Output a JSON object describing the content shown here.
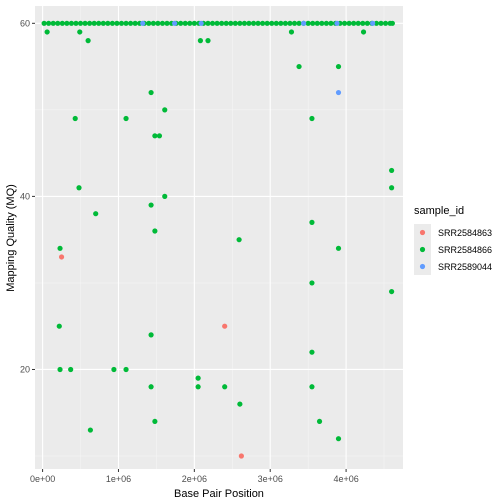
{
  "chart_data": {
    "type": "scatter",
    "xlabel": "Base Pair Position",
    "ylabel": "Mapping Quality (MQ)",
    "xlim": [
      -100000,
      4750000
    ],
    "ylim": [
      8.5,
      62
    ],
    "x_ticks": [
      0,
      1000000,
      2000000,
      3000000,
      4000000
    ],
    "x_tick_labels": [
      "0e+00",
      "1e+06",
      "2e+06",
      "3e+06",
      "4e+06"
    ],
    "y_ticks": [
      20,
      40,
      60
    ],
    "y_tick_labels": [
      "20",
      "40",
      "60"
    ],
    "grid": true,
    "legend": {
      "title": "sample_id",
      "position": "right"
    },
    "series": [
      {
        "name": "SRR2584863",
        "color": "#F8766D",
        "points": [
          [
            250000,
            33
          ],
          [
            2400000,
            25
          ],
          [
            2620000,
            10
          ]
        ]
      },
      {
        "name": "SRR2584866",
        "color": "#00BA38",
        "points": [
          [
            20000,
            60
          ],
          [
            80000,
            60
          ],
          [
            140000,
            60
          ],
          [
            200000,
            60
          ],
          [
            260000,
            60
          ],
          [
            320000,
            60
          ],
          [
            380000,
            60
          ],
          [
            440000,
            60
          ],
          [
            500000,
            60
          ],
          [
            560000,
            60
          ],
          [
            620000,
            60
          ],
          [
            680000,
            60
          ],
          [
            740000,
            60
          ],
          [
            800000,
            60
          ],
          [
            860000,
            60
          ],
          [
            920000,
            60
          ],
          [
            980000,
            60
          ],
          [
            1040000,
            60
          ],
          [
            1100000,
            60
          ],
          [
            1160000,
            60
          ],
          [
            1220000,
            60
          ],
          [
            1280000,
            60
          ],
          [
            1340000,
            60
          ],
          [
            1400000,
            60
          ],
          [
            1460000,
            60
          ],
          [
            1520000,
            60
          ],
          [
            1580000,
            60
          ],
          [
            1640000,
            60
          ],
          [
            1700000,
            60
          ],
          [
            1760000,
            60
          ],
          [
            1820000,
            60
          ],
          [
            1880000,
            60
          ],
          [
            1940000,
            60
          ],
          [
            2000000,
            60
          ],
          [
            2060000,
            60
          ],
          [
            2120000,
            60
          ],
          [
            2180000,
            60
          ],
          [
            2240000,
            60
          ],
          [
            2300000,
            60
          ],
          [
            2360000,
            60
          ],
          [
            2420000,
            60
          ],
          [
            2480000,
            60
          ],
          [
            2540000,
            60
          ],
          [
            2600000,
            60
          ],
          [
            2660000,
            60
          ],
          [
            2720000,
            60
          ],
          [
            2780000,
            60
          ],
          [
            2840000,
            60
          ],
          [
            2900000,
            60
          ],
          [
            2960000,
            60
          ],
          [
            3020000,
            60
          ],
          [
            3080000,
            60
          ],
          [
            3140000,
            60
          ],
          [
            3200000,
            60
          ],
          [
            3260000,
            60
          ],
          [
            3320000,
            60
          ],
          [
            3380000,
            60
          ],
          [
            3440000,
            60
          ],
          [
            3500000,
            60
          ],
          [
            3560000,
            60
          ],
          [
            3620000,
            60
          ],
          [
            3680000,
            60
          ],
          [
            3740000,
            60
          ],
          [
            3800000,
            60
          ],
          [
            3860000,
            60
          ],
          [
            3920000,
            60
          ],
          [
            3980000,
            60
          ],
          [
            4040000,
            60
          ],
          [
            4100000,
            60
          ],
          [
            4160000,
            60
          ],
          [
            4220000,
            60
          ],
          [
            4280000,
            60
          ],
          [
            4340000,
            60
          ],
          [
            4400000,
            60
          ],
          [
            4460000,
            60
          ],
          [
            4520000,
            60
          ],
          [
            4580000,
            60
          ],
          [
            4610000,
            60
          ],
          [
            60000,
            59
          ],
          [
            490000,
            59
          ],
          [
            600000,
            58
          ],
          [
            2080000,
            58
          ],
          [
            2180000,
            58
          ],
          [
            3280000,
            59
          ],
          [
            4230000,
            59
          ],
          [
            1430000,
            52
          ],
          [
            3380000,
            55
          ],
          [
            3900000,
            55
          ],
          [
            1610000,
            50
          ],
          [
            430000,
            49
          ],
          [
            1100000,
            49
          ],
          [
            3550000,
            49
          ],
          [
            1480000,
            47
          ],
          [
            1540000,
            47
          ],
          [
            4600000,
            43
          ],
          [
            4600000,
            41
          ],
          [
            480000,
            41
          ],
          [
            1610000,
            40
          ],
          [
            1430000,
            39
          ],
          [
            700000,
            38
          ],
          [
            3550000,
            37
          ],
          [
            1480000,
            36
          ],
          [
            2590000,
            35
          ],
          [
            230000,
            34
          ],
          [
            3900000,
            34
          ],
          [
            3550000,
            30
          ],
          [
            4600000,
            29
          ],
          [
            220000,
            25
          ],
          [
            1430000,
            24
          ],
          [
            3550000,
            22
          ],
          [
            230000,
            20
          ],
          [
            370000,
            20
          ],
          [
            940000,
            20
          ],
          [
            1100000,
            20
          ],
          [
            2050000,
            19
          ],
          [
            1430000,
            18
          ],
          [
            2050000,
            18
          ],
          [
            2400000,
            18
          ],
          [
            3550000,
            18
          ],
          [
            2600000,
            16
          ],
          [
            1480000,
            14
          ],
          [
            3650000,
            14
          ],
          [
            630000,
            13
          ],
          [
            3900000,
            12
          ]
        ]
      },
      {
        "name": "SRR2589044",
        "color": "#619CFF",
        "points": [
          [
            1320000,
            60
          ],
          [
            1740000,
            60
          ],
          [
            2090000,
            60
          ],
          [
            3440000,
            60
          ],
          [
            3880000,
            60
          ],
          [
            4350000,
            60
          ],
          [
            3900000,
            52
          ]
        ]
      }
    ]
  }
}
